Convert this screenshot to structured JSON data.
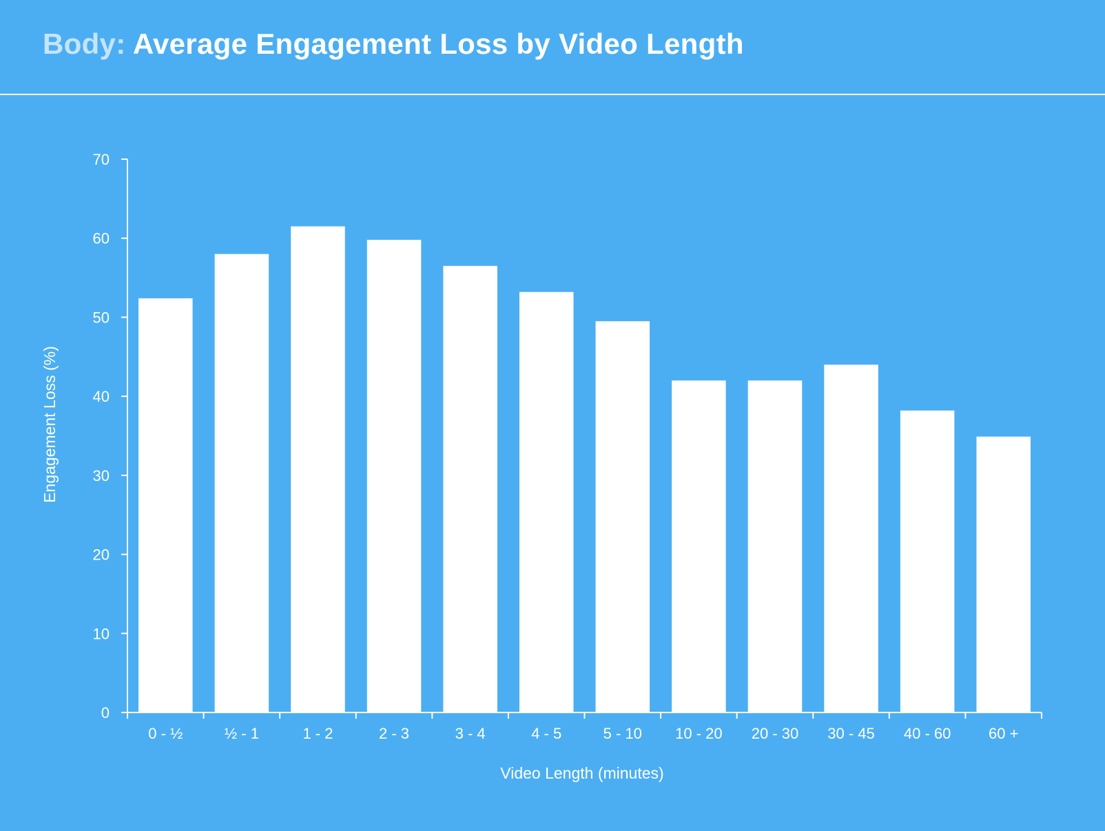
{
  "header": {
    "title_prefix": "Body:",
    "title_main": "Average Engagement Loss by Video Length"
  },
  "colors": {
    "background": "#4baef2",
    "bar": "#ffffff",
    "axis": "#ffffff",
    "title_prefix": "#c6e4fb"
  },
  "chart_data": {
    "type": "bar",
    "title": "Body: Average Engagement Loss by Video Length",
    "xlabel": "Video Length (minutes)",
    "ylabel": "Engagement Loss (%)",
    "ylim": [
      0,
      70
    ],
    "yticks": [
      0,
      10,
      20,
      30,
      40,
      50,
      60,
      70
    ],
    "grid": false,
    "categories": [
      "0 - ½",
      "½ - 1",
      "1 - 2",
      "2 - 3",
      "3 - 4",
      "4 - 5",
      "5 - 10",
      "10 - 20",
      "20 - 30",
      "30 - 45",
      "40 - 60",
      "60 +"
    ],
    "values": [
      52.4,
      58,
      61.5,
      59.8,
      56.5,
      53.2,
      49.5,
      42,
      42,
      44,
      38.2,
      34.9
    ]
  }
}
